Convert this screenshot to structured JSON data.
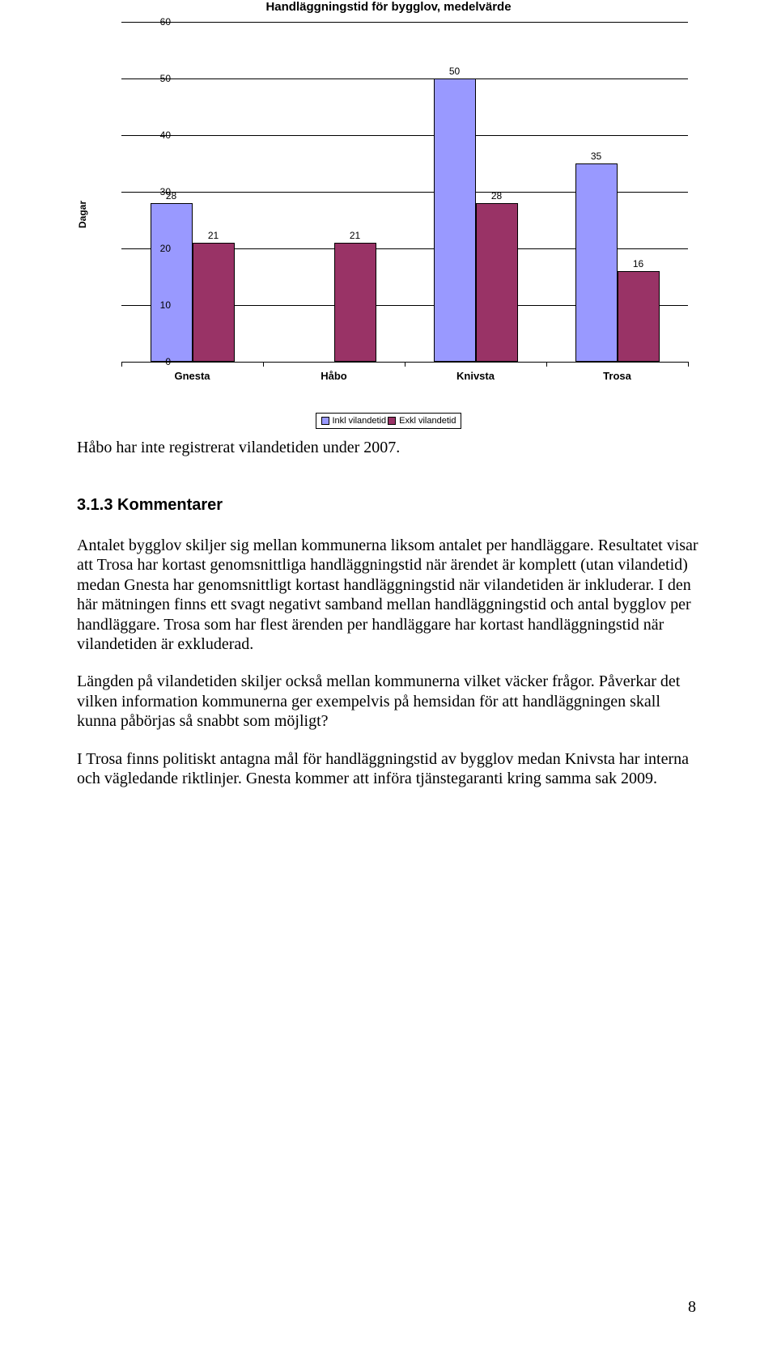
{
  "chart": {
    "type": "bar",
    "title": "Handläggningstid för bygglov, medelvärde",
    "y_axis_label": "Dagar",
    "categories": [
      "Gnesta",
      "Håbo",
      "Knivsta",
      "Trosa"
    ],
    "series": [
      {
        "name": "Inkl vilandetid",
        "color": "#9999ff",
        "values": [
          28,
          null,
          50,
          35
        ]
      },
      {
        "name": "Exkl vilandetid",
        "color": "#993366",
        "values": [
          21,
          21,
          28,
          16
        ]
      }
    ],
    "ylim": [
      0,
      60
    ],
    "ytick_step": 10,
    "grid_color": "#000000",
    "background_color": "#ffffff",
    "title_fontsize": 15,
    "axis_fontsize": 12,
    "category_fontsize": 13,
    "bar_border_color": "#000000"
  },
  "chart_caption": "Håbo har inte registrerat vilandetiden under 2007.",
  "heading": "3.1.3 Kommentarer",
  "para1": "Antalet bygglov skiljer sig mellan kommunerna liksom antalet per handläggare. Resultatet visar att Trosa har kortast genomsnittliga handläggningstid när ärendet är komplett (utan vilandetid) medan Gnesta har genomsnittligt kortast handläggningstid när vilandetiden är inkluderar. I den här mätningen finns ett svagt negativt samband mellan handläggningstid och antal bygglov per handläggare. Trosa som har flest ärenden per handläggare har kortast handläggningstid när vilandetiden är exkluderad.",
  "para2": "Längden på vilandetiden skiljer också mellan kommunerna vilket väcker frågor. Påverkar det vilken information kommunerna ger exempelvis på hemsidan för att handläggningen skall kunna påbörjas så snabbt som möjligt?",
  "para3": "I Trosa finns politiskt antagna mål för handläggningstid av bygglov medan Knivsta har interna och vägledande riktlinjer. Gnesta kommer att införa tjänstegaranti kring samma sak 2009.",
  "page_number": "8"
}
